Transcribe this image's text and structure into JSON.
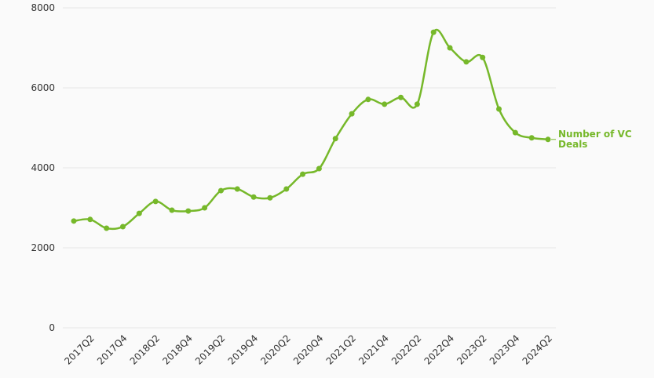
{
  "chart_data": {
    "type": "line",
    "categories": [
      null,
      "2017Q2",
      null,
      "2017Q4",
      null,
      "2018Q2",
      null,
      "2018Q4",
      null,
      "2019Q2",
      null,
      "2019Q4",
      null,
      "2020Q2",
      null,
      "2020Q4",
      null,
      "2021Q2",
      null,
      "2021Q4",
      null,
      "2022Q2",
      null,
      "2022Q4",
      null,
      "2023Q2",
      null,
      "2023Q4",
      null,
      "2024Q2"
    ],
    "series": [
      {
        "name": "Number of VC Deals",
        "color": "#76b82a",
        "values": [
          2670,
          2710,
          2490,
          2530,
          2860,
          3160,
          2940,
          2920,
          3000,
          3430,
          3470,
          3270,
          3250,
          3470,
          3840,
          3980,
          4730,
          5350,
          5710,
          5590,
          5760,
          5590,
          7390,
          7000,
          6650,
          6760,
          5470,
          4880,
          4750,
          4710
        ]
      }
    ],
    "ylim": [
      0,
      8000
    ],
    "yticks": [
      0,
      2000,
      4000,
      6000,
      8000
    ],
    "grid": true
  }
}
